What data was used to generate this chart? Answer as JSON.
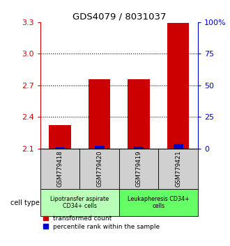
{
  "title": "GDS4079 / 8031037",
  "samples": [
    "GSM779418",
    "GSM779420",
    "GSM779419",
    "GSM779421"
  ],
  "red_values": [
    2.32,
    2.755,
    2.755,
    3.29
  ],
  "blue_values": [
    1.0,
    2.0,
    1.5,
    3.5
  ],
  "ylim_left": [
    2.1,
    3.3
  ],
  "ylim_right": [
    0,
    100
  ],
  "yticks_left": [
    2.1,
    2.4,
    2.7,
    3.0,
    3.3
  ],
  "yticks_right": [
    0,
    25,
    50,
    75,
    100
  ],
  "ytick_right_labels": [
    "0",
    "25",
    "50",
    "75",
    "100%"
  ],
  "grid_ticks": [
    2.4,
    2.7,
    3.0
  ],
  "bar_width": 0.55,
  "red_color": "#cc0000",
  "blue_color": "#0000cc",
  "cell_type_label": "cell type",
  "groups": [
    {
      "label": "Lipotransfer aspirate\nCD34+ cells",
      "color": "#b8ffb8",
      "samples": [
        0,
        1
      ]
    },
    {
      "label": "Leukapheresis CD34+\ncells",
      "color": "#66ff66",
      "samples": [
        2,
        3
      ]
    }
  ],
  "legend_red": "transformed count",
  "legend_blue": "percentile rank within the sample",
  "sample_box_color": "#d0d0d0",
  "background_color": "#ffffff"
}
